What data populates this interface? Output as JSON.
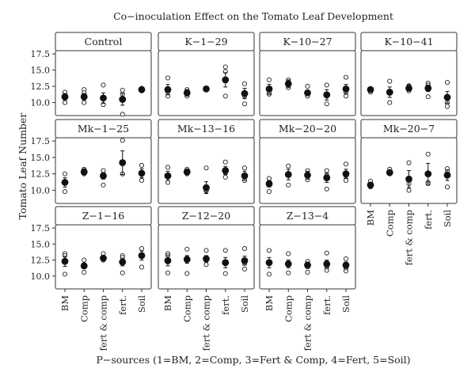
{
  "chart_data": {
    "type": "scatter",
    "title": "Co−inoculation Effect on the Tomato Leaf Development",
    "xlabel": "P−sources (1=BM, 2=Comp, 3=Fert & Comp, 4=Fert, 5=Soil)",
    "ylabel": "Tomato Leaf Number",
    "categories": [
      "BM",
      "Comp",
      "fert & comp",
      "fert.",
      "Soil"
    ],
    "yticks": [
      "10.0",
      "12.5",
      "15.0",
      "17.5"
    ],
    "ylim": [
      8.0,
      18.0
    ],
    "grid": false,
    "panels": [
      {
        "label": "Control",
        "mean": [
          10.9,
          10.9,
          10.7,
          10.5,
          12.0
        ],
        "err": [
          0.5,
          0.5,
          0.8,
          0.9,
          0.2
        ],
        "points": [
          [
            11.6,
            10.0,
            11.0
          ],
          [
            12.0,
            10.0,
            11.5
          ],
          [
            12.7,
            9.7,
            9.7
          ],
          [
            11.9,
            8.2,
            11.3
          ],
          [
            12.2,
            11.8,
            11.9
          ]
        ]
      },
      {
        "label": "K−1−29",
        "mean": [
          12.0,
          11.5,
          12.1,
          13.5,
          11.4
        ],
        "err": [
          0.8,
          0.5,
          0.2,
          1.1,
          0.8
        ],
        "points": [
          [
            13.8,
            11.0,
            11.6
          ],
          [
            12.0,
            11.0,
            11.5
          ],
          [
            12.2,
            12.0,
            12.1
          ],
          [
            15.5,
            14.8,
            11.0
          ],
          [
            12.9,
            9.8,
            11.0
          ]
        ]
      },
      {
        "label": "K−10−27",
        "mean": [
          12.1,
          12.9,
          11.5,
          11.2,
          12.1
        ],
        "err": [
          0.7,
          0.6,
          0.4,
          0.8,
          0.7
        ],
        "points": [
          [
            13.5,
            11.3,
            11.5
          ],
          [
            13.5,
            12.3,
            12.8
          ],
          [
            12.5,
            11.0,
            11.0
          ],
          [
            12.7,
            9.8,
            11.0
          ],
          [
            13.9,
            11.0,
            11.6
          ]
        ]
      },
      {
        "label": "K−10−41",
        "mean": [
          12.0,
          11.6,
          12.2,
          12.2,
          10.8
        ],
        "err": [
          0.2,
          0.8,
          0.4,
          0.5,
          0.9
        ],
        "points": [
          [
            12.1,
            11.6,
            12.0
          ],
          [
            13.3,
            10.0,
            11.5
          ],
          [
            12.6,
            11.8,
            12.5
          ],
          [
            13.0,
            10.9,
            12.7
          ],
          [
            13.1,
            9.4,
            10.0
          ]
        ]
      },
      {
        "label": "Mk−1−25",
        "mean": [
          11.2,
          12.8,
          12.2,
          14.2,
          12.6
        ],
        "err": [
          0.7,
          0.3,
          0.5,
          1.8,
          0.7
        ],
        "points": [
          [
            12.5,
            9.8,
            11.1
          ],
          [
            13.2,
            12.5,
            13.0
          ],
          [
            13.0,
            10.8,
            12.3
          ],
          [
            17.6,
            12.5,
            12.5
          ],
          [
            13.8,
            11.5,
            12.4
          ]
        ]
      },
      {
        "label": "Mk−13−16",
        "mean": [
          12.2,
          12.8,
          10.4,
          13.0,
          12.2
        ],
        "err": [
          0.7,
          0.3,
          0.9,
          0.6,
          0.7
        ],
        "points": [
          [
            13.5,
            11.2,
            12.0
          ],
          [
            13.2,
            12.5,
            12.9
          ],
          [
            13.4,
            9.9,
            10.0
          ],
          [
            14.3,
            12.7,
            12.0
          ],
          [
            13.4,
            11.5,
            12.2
          ]
        ]
      },
      {
        "label": "Mk−20−20",
        "mean": [
          11.0,
          12.4,
          12.3,
          11.9,
          12.5
        ],
        "err": [
          0.5,
          0.8,
          0.6,
          0.7,
          0.7
        ],
        "points": [
          [
            11.8,
            9.8,
            11.2
          ],
          [
            13.7,
            10.8,
            12.6
          ],
          [
            13.0,
            11.6,
            12.3
          ],
          [
            13.0,
            10.2,
            12.3
          ],
          [
            14.0,
            11.5,
            12.2
          ]
        ]
      },
      {
        "label": "Mk−20−7",
        "mean": [
          10.8,
          12.7,
          11.7,
          12.5,
          12.3
        ],
        "err": [
          0.3,
          0.3,
          1.3,
          1.6,
          0.8
        ],
        "points": [
          [
            11.4,
            10.5,
            10.7
          ],
          [
            13.0,
            12.5,
            13.2
          ],
          [
            14.2,
            10.0,
            11.0
          ],
          [
            15.5,
            11.2,
            11.0
          ],
          [
            13.3,
            10.5,
            12.8
          ]
        ]
      },
      {
        "label": "Z−1−16",
        "mean": [
          12.3,
          11.6,
          12.8,
          12.2,
          13.2
        ],
        "err": [
          0.8,
          0.4,
          0.2,
          0.6,
          0.7
        ],
        "points": [
          [
            13.5,
            10.3,
            13.2
          ],
          [
            12.5,
            10.6,
            11.8
          ],
          [
            13.5,
            12.5,
            12.8
          ],
          [
            13.2,
            10.5,
            12.9
          ],
          [
            14.3,
            11.4,
            13.2
          ]
        ]
      },
      {
        "label": "Z−12−20",
        "mean": [
          12.4,
          12.6,
          12.7,
          12.1,
          12.4
        ],
        "err": [
          0.8,
          0.6,
          0.5,
          0.8,
          0.7
        ],
        "points": [
          [
            13.5,
            10.5,
            13.2
          ],
          [
            14.2,
            10.4,
            12.8
          ],
          [
            14.0,
            11.8,
            12.5
          ],
          [
            14.0,
            10.4,
            12.2
          ],
          [
            14.3,
            11.1,
            12.0
          ]
        ]
      },
      {
        "label": "Z−13−4",
        "mean": [
          12.1,
          11.9,
          11.7,
          11.9,
          11.7
        ],
        "err": [
          0.8,
          0.6,
          0.5,
          0.6,
          0.5
        ],
        "points": [
          [
            14.0,
            10.3,
            12.0
          ],
          [
            13.5,
            10.5,
            11.8
          ],
          [
            12.3,
            10.6,
            11.5
          ],
          [
            13.6,
            10.9,
            11.4
          ],
          [
            12.7,
            10.8,
            11.3
          ]
        ]
      }
    ]
  }
}
